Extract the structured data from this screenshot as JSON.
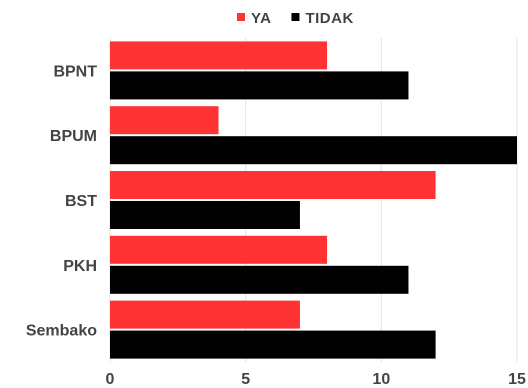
{
  "chart_data": {
    "type": "bar",
    "orientation": "horizontal",
    "categories": [
      "BPNT",
      "BPUM",
      "BST",
      "PKH",
      "Sembako"
    ],
    "series": [
      {
        "name": "YA",
        "color": "#ff3333",
        "values": [
          8,
          4,
          12,
          8,
          7
        ]
      },
      {
        "name": "TIDAK",
        "color": "#000000",
        "values": [
          11,
          15,
          7,
          11,
          12
        ]
      }
    ],
    "xlim": [
      0,
      15
    ],
    "xticks": [
      0,
      5,
      10,
      15
    ],
    "grid": true,
    "legend_position": "top-center"
  }
}
